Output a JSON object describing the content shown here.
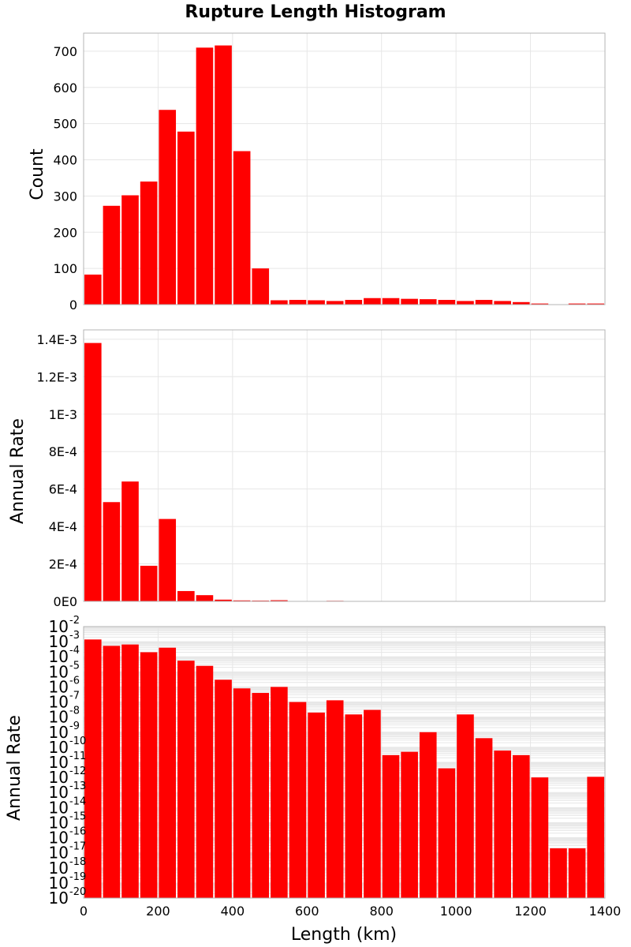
{
  "chart_data": {
    "title": "Rupture Length Histogram",
    "type": "bar",
    "xlabel": "Length (km)",
    "xlim": [
      0,
      1400
    ],
    "xticks": [
      0,
      200,
      400,
      600,
      800,
      1000,
      1200,
      1400
    ],
    "bin_width": 50,
    "bar_color": "#ff0000",
    "grid": true,
    "panels": [
      {
        "ylabel": "Count",
        "yscale": "linear",
        "ylim": [
          0,
          750
        ],
        "yticks": [
          0,
          100,
          200,
          300,
          400,
          500,
          600,
          700
        ],
        "ytick_labels": [
          "0",
          "100",
          "200",
          "300",
          "400",
          "500",
          "600",
          "700"
        ],
        "x": [
          25,
          75,
          125,
          175,
          225,
          275,
          325,
          375,
          425,
          475,
          525,
          575,
          625,
          675,
          725,
          775,
          825,
          875,
          925,
          975,
          1025,
          1075,
          1125,
          1175,
          1225,
          1275,
          1325,
          1375
        ],
        "values": [
          83,
          273,
          302,
          340,
          538,
          478,
          710,
          716,
          424,
          100,
          12,
          13,
          12,
          10,
          13,
          18,
          18,
          16,
          15,
          13,
          10,
          13,
          10,
          7,
          3,
          0,
          3,
          3
        ]
      },
      {
        "ylabel": "Annual Rate",
        "yscale": "linear",
        "ylim": [
          0,
          0.00145
        ],
        "yticks": [
          0,
          0.0002,
          0.0004,
          0.0006,
          0.0008,
          0.001,
          0.0012,
          0.0014
        ],
        "ytick_labels": [
          "0E0",
          "2E-4",
          "4E-4",
          "6E-4",
          "8E-4",
          "1E-3",
          "1.2E-3",
          "1.4E-3"
        ],
        "x": [
          25,
          75,
          125,
          175,
          225,
          275,
          325,
          375,
          425,
          475,
          525,
          575,
          625,
          675,
          725,
          775,
          825,
          875,
          925,
          975,
          1025,
          1075,
          1125,
          1175,
          1225,
          1275,
          1325,
          1375
        ],
        "values": [
          0.00138,
          0.00053,
          0.00064,
          0.00019,
          0.00044,
          5.5e-05,
          3.3e-05,
          9e-06,
          5e-06,
          4e-06,
          6e-06,
          2e-06,
          5e-07,
          3e-06,
          3e-07,
          3e-07,
          2e-07,
          2e-07,
          2e-07,
          1e-07,
          1e-06,
          2e-07,
          2e-07,
          1e-07,
          5e-08,
          1e-10,
          1e-10,
          2e-08
        ]
      },
      {
        "ylabel": "Annual Rate",
        "yscale": "log",
        "ylim": [
          1e-20,
          0.01
        ],
        "ytick_exponents": [
          -20,
          -19,
          -18,
          -17,
          -16,
          -15,
          -14,
          -13,
          -12,
          -11,
          -10,
          -9,
          -8,
          -7,
          -6,
          -5,
          -4,
          -3,
          -2
        ],
        "ytick_base": "10",
        "x": [
          25,
          75,
          125,
          175,
          225,
          275,
          325,
          375,
          425,
          475,
          525,
          575,
          625,
          675,
          725,
          775,
          825,
          875,
          925,
          975,
          1025,
          1075,
          1125,
          1175,
          1225,
          1275,
          1325,
          1375
        ],
        "values": [
          0.0014,
          0.00053,
          0.00065,
          0.0002,
          0.0004,
          5.5e-05,
          2.5e-05,
          3e-06,
          8e-07,
          4e-07,
          1e-06,
          1e-07,
          2e-08,
          1.3e-07,
          1.5e-08,
          3e-08,
          3e-11,
          5e-11,
          1e-09,
          4e-12,
          1.5e-08,
          4e-10,
          6e-11,
          3e-11,
          1e-12,
          2e-17,
          2e-17,
          1.1e-12
        ]
      }
    ]
  }
}
